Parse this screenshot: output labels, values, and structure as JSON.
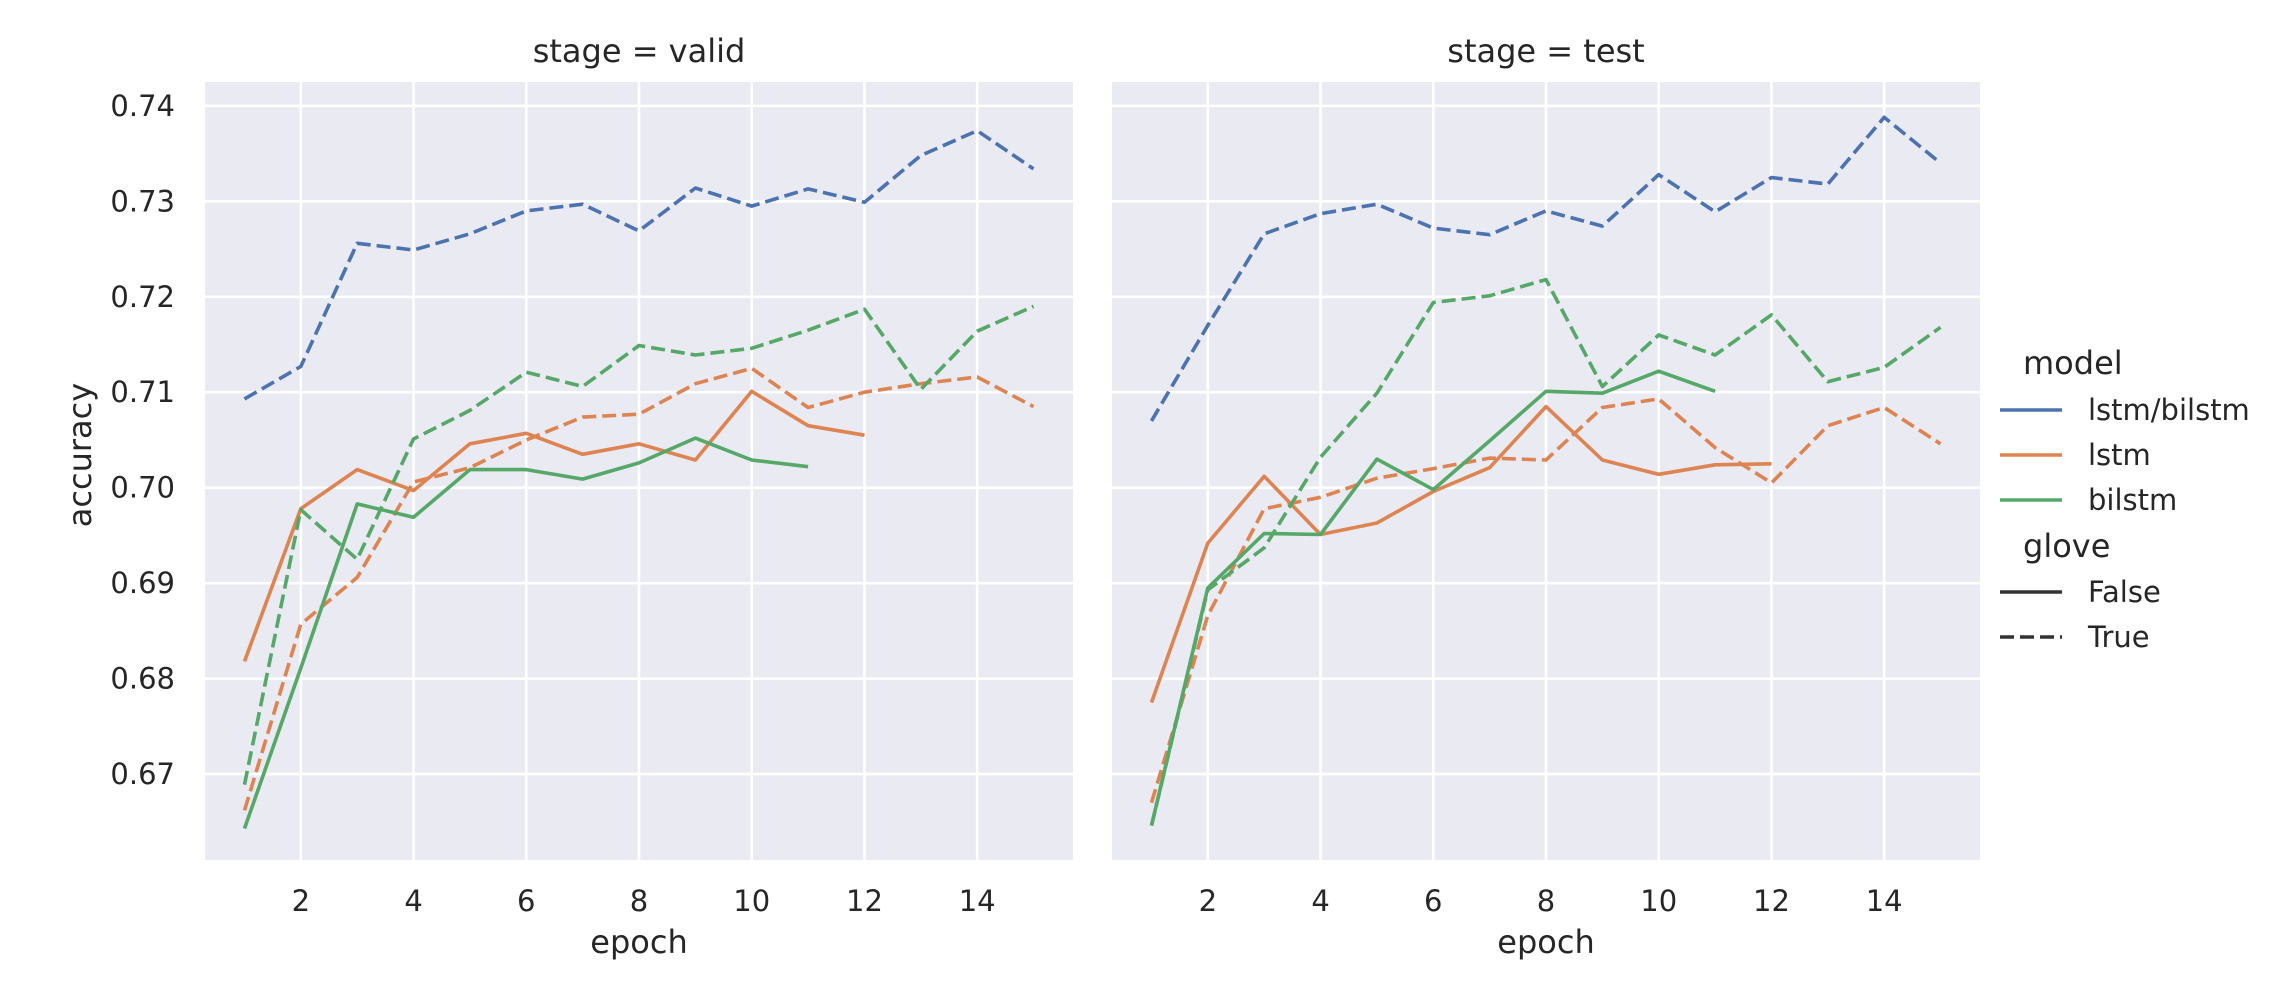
{
  "chart_data": {
    "type": "line",
    "ylabel": "accuracy",
    "xlabel": "epoch",
    "x_ticks": [
      2,
      4,
      6,
      8,
      10,
      12,
      14
    ],
    "y_ticks": [
      0.67,
      0.68,
      0.69,
      0.7,
      0.71,
      0.72,
      0.73,
      0.74
    ],
    "y_tick_labels": [
      "0.67",
      "0.68",
      "0.69",
      "0.70",
      "0.71",
      "0.72",
      "0.73",
      "0.74"
    ],
    "xlim": [
      0.3,
      15.7
    ],
    "ylim": [
      0.661,
      0.7425
    ],
    "grid": true,
    "legend": {
      "placement": "right",
      "hue_title": "model",
      "style_title": "glove",
      "models": [
        {
          "name": "lstm/bilstm",
          "color": "#4c72b0"
        },
        {
          "name": "lstm",
          "color": "#dd8452"
        },
        {
          "name": "bilstm",
          "color": "#55a868"
        }
      ],
      "styles": [
        {
          "name": "False",
          "dash": "solid"
        },
        {
          "name": "True",
          "dash": "dashed"
        }
      ]
    },
    "panels": [
      {
        "title": "stage = valid",
        "series": [
          {
            "model": "lstm/bilstm",
            "glove": "True",
            "x": [
              1,
              2,
              3,
              4,
              5,
              6,
              7,
              8,
              9,
              10,
              11,
              12,
              13,
              14,
              15
            ],
            "y": [
              0.7093,
              0.7127,
              0.7256,
              0.7249,
              0.7266,
              0.729,
              0.7297,
              0.7269,
              0.7314,
              0.7295,
              0.7313,
              0.7299,
              0.7348,
              0.7374,
              0.7334
            ]
          },
          {
            "model": "lstm",
            "glove": "False",
            "x": [
              1,
              2,
              3,
              4,
              5,
              6,
              7,
              8,
              9,
              10,
              11,
              12
            ],
            "y": [
              0.6818,
              0.6978,
              0.7019,
              0.6997,
              0.7046,
              0.7057,
              0.7035,
              0.7046,
              0.7029,
              0.7101,
              0.7065,
              0.7055
            ]
          },
          {
            "model": "lstm",
            "glove": "True",
            "x": [
              1,
              2,
              3,
              4,
              5,
              6,
              7,
              8,
              9,
              10,
              11,
              12,
              13,
              14,
              15
            ],
            "y": [
              0.6662,
              0.6857,
              0.6906,
              0.7006,
              0.7021,
              0.705,
              0.7074,
              0.7077,
              0.7109,
              0.7125,
              0.7084,
              0.71,
              0.7109,
              0.7116,
              0.7085
            ]
          },
          {
            "model": "bilstm",
            "glove": "False",
            "x": [
              1,
              2,
              3,
              4,
              5,
              6,
              7,
              8,
              9,
              10,
              11
            ],
            "y": [
              0.6643,
              0.6811,
              0.6983,
              0.6969,
              0.7019,
              0.7019,
              0.7009,
              0.7026,
              0.7052,
              0.7029,
              0.7022
            ]
          },
          {
            "model": "bilstm",
            "glove": "True",
            "x": [
              1,
              2,
              3,
              4,
              5,
              6,
              7,
              8,
              9,
              10,
              11,
              12,
              13,
              14,
              15
            ],
            "y": [
              0.6689,
              0.6977,
              0.6925,
              0.7051,
              0.7081,
              0.7121,
              0.7106,
              0.7149,
              0.7139,
              0.7146,
              0.7165,
              0.7187,
              0.7103,
              0.7164,
              0.719
            ]
          }
        ]
      },
      {
        "title": "stage = test",
        "series": [
          {
            "model": "lstm/bilstm",
            "glove": "True",
            "x": [
              1,
              2,
              3,
              4,
              5,
              6,
              7,
              8,
              9,
              10,
              11,
              12,
              13,
              14,
              15
            ],
            "y": [
              0.707,
              0.717,
              0.7266,
              0.7287,
              0.7297,
              0.7272,
              0.7265,
              0.729,
              0.7274,
              0.7328,
              0.7289,
              0.7325,
              0.7318,
              0.7388,
              0.734
            ]
          },
          {
            "model": "lstm",
            "glove": "False",
            "x": [
              1,
              2,
              3,
              4,
              5,
              6,
              7,
              8,
              9,
              10,
              11,
              12
            ],
            "y": [
              0.6775,
              0.6942,
              0.7012,
              0.6951,
              0.6963,
              0.6996,
              0.7021,
              0.7085,
              0.7029,
              0.7014,
              0.7024,
              0.7025
            ]
          },
          {
            "model": "lstm",
            "glove": "True",
            "x": [
              1,
              2,
              3,
              4,
              5,
              6,
              7,
              8,
              9,
              10,
              11,
              12,
              13,
              14,
              15
            ],
            "y": [
              0.667,
              0.6866,
              0.6978,
              0.699,
              0.701,
              0.702,
              0.7031,
              0.7029,
              0.7084,
              0.7093,
              0.7042,
              0.7005,
              0.7065,
              0.7084,
              0.7046
            ]
          },
          {
            "model": "bilstm",
            "glove": "False",
            "x": [
              1,
              2,
              3,
              4,
              5,
              6,
              7,
              8,
              9,
              10,
              11
            ],
            "y": [
              0.6646,
              0.6895,
              0.6952,
              0.6951,
              0.703,
              0.6998,
              0.7049,
              0.7101,
              0.7099,
              0.7122,
              0.7101
            ]
          },
          {
            "model": "bilstm",
            "glove": "True",
            "x": [
              1,
              2,
              3,
              4,
              5,
              6,
              7,
              8,
              9,
              10,
              11,
              12,
              13,
              14,
              15
            ],
            "y": [
              0.6646,
              0.6893,
              0.6937,
              0.7032,
              0.7099,
              0.7194,
              0.7201,
              0.7218,
              0.7106,
              0.716,
              0.7139,
              0.7181,
              0.7111,
              0.7126,
              0.7168
            ]
          }
        ]
      }
    ]
  }
}
